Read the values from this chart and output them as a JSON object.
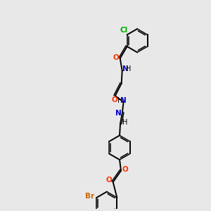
{
  "background_color": "#e8e8e8",
  "atom_colors": {
    "C": "#000000",
    "N": "#0000cd",
    "O": "#ff3300",
    "Cl": "#00aa00",
    "Br": "#cc6600",
    "H": "#000000"
  },
  "bond_color": "#000000",
  "figsize": [
    3.0,
    3.0
  ],
  "dpi": 100
}
